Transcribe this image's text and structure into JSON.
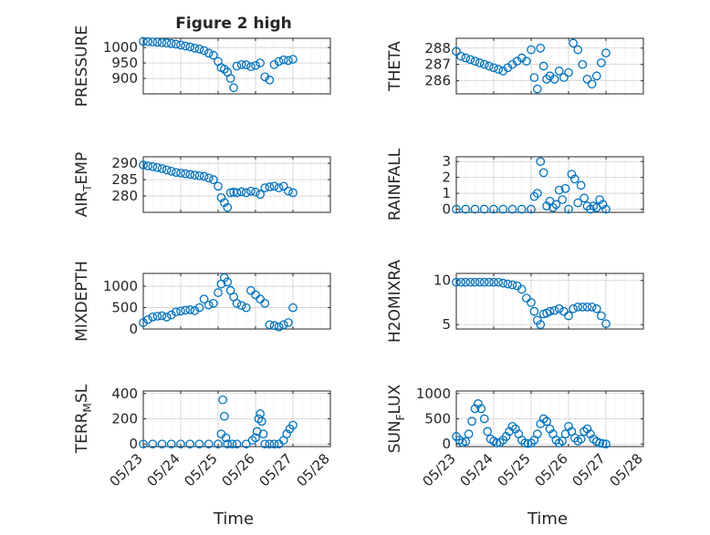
{
  "figure": {
    "title": "Figure 2 high",
    "xlabel": "Time"
  },
  "x_ticks": [
    "05/23",
    "05/24",
    "05/25",
    "05/26",
    "05/27",
    "05/28"
  ],
  "colors": {
    "marker": "#0072BD",
    "axis": "#262626",
    "grid": "#dcdcdc"
  },
  "chart_data": [
    {
      "type": "scatter",
      "title": "Figure 2 high",
      "ylabel": "PRESSURE",
      "ylabel_sub": [],
      "xlim": [
        "05/23",
        "05/28"
      ],
      "ylim": [
        850,
        1030
      ],
      "yticks": [
        900,
        950,
        1000
      ],
      "grid": true,
      "x": [
        "05/23 00:00",
        "05/23 03:00",
        "05/23 06:00",
        "05/23 09:00",
        "05/23 12:00",
        "05/23 15:00",
        "05/23 18:00",
        "05/23 21:00",
        "05/24 00:00",
        "05/24 03:00",
        "05/24 06:00",
        "05/24 09:00",
        "05/24 12:00",
        "05/24 15:00",
        "05/24 18:00",
        "05/24 21:00",
        "05/25 00:00",
        "05/25 02:00",
        "05/25 04:00",
        "05/25 06:00",
        "05/25 08:00",
        "05/25 10:00",
        "05/25 12:00",
        "05/25 15:00",
        "05/25 18:00",
        "05/25 21:00",
        "05/26 00:00",
        "05/26 03:00",
        "05/26 06:00",
        "05/26 09:00",
        "05/26 12:00",
        "05/26 15:00",
        "05/26 18:00",
        "05/26 21:00",
        "05/27 00:00"
      ],
      "y": [
        1020,
        1019,
        1018,
        1017,
        1016,
        1015,
        1013,
        1011,
        1008,
        1005,
        1002,
        998,
        995,
        990,
        982,
        975,
        955,
        935,
        930,
        920,
        900,
        870,
        940,
        945,
        944,
        938,
        942,
        950,
        905,
        895,
        945,
        955,
        960,
        958,
        962
      ]
    },
    {
      "type": "scatter",
      "ylabel": "THETA",
      "ylabel_sub": [],
      "xlim": [
        "05/23",
        "05/28"
      ],
      "ylim": [
        285.2,
        288.6
      ],
      "yticks": [
        286,
        287,
        288
      ],
      "grid": true,
      "x": [
        "05/23 00:00",
        "05/23 03:00",
        "05/23 06:00",
        "05/23 09:00",
        "05/23 12:00",
        "05/23 15:00",
        "05/23 18:00",
        "05/23 21:00",
        "05/24 00:00",
        "05/24 03:00",
        "05/24 06:00",
        "05/24 09:00",
        "05/24 12:00",
        "05/24 15:00",
        "05/24 18:00",
        "05/24 21:00",
        "05/25 00:00",
        "05/25 02:00",
        "05/25 04:00",
        "05/25 06:00",
        "05/25 08:00",
        "05/25 10:00",
        "05/25 12:00",
        "05/25 15:00",
        "05/25 18:00",
        "05/25 21:00",
        "05/26 00:00",
        "05/26 03:00",
        "05/26 06:00",
        "05/26 09:00",
        "05/26 12:00",
        "05/26 15:00",
        "05/26 18:00",
        "05/26 21:00",
        "05/27 00:00"
      ],
      "y": [
        287.8,
        287.5,
        287.4,
        287.3,
        287.2,
        287.1,
        287.0,
        286.9,
        286.8,
        286.7,
        286.6,
        286.8,
        287.0,
        287.2,
        287.4,
        287.2,
        287.9,
        286.2,
        285.5,
        288.0,
        286.9,
        286.1,
        286.3,
        286.1,
        286.6,
        286.2,
        286.5,
        288.3,
        287.9,
        287.0,
        286.1,
        285.8,
        286.3,
        287.1,
        287.7
      ]
    },
    {
      "type": "scatter",
      "ylabel": "AIR",
      "ylabel_sub": [
        "T",
        "EMP"
      ],
      "xlim": [
        "05/23",
        "05/28"
      ],
      "ylim": [
        275,
        292
      ],
      "yticks": [
        280,
        285,
        290
      ],
      "grid": true,
      "x": [
        "05/23 00:00",
        "05/23 03:00",
        "05/23 06:00",
        "05/23 09:00",
        "05/23 12:00",
        "05/23 15:00",
        "05/23 18:00",
        "05/23 21:00",
        "05/24 00:00",
        "05/24 03:00",
        "05/24 06:00",
        "05/24 09:00",
        "05/24 12:00",
        "05/24 15:00",
        "05/24 18:00",
        "05/24 21:00",
        "05/25 00:00",
        "05/25 02:00",
        "05/25 04:00",
        "05/25 06:00",
        "05/25 08:00",
        "05/25 10:00",
        "05/25 12:00",
        "05/25 15:00",
        "05/25 18:00",
        "05/25 21:00",
        "05/26 00:00",
        "05/26 03:00",
        "05/26 06:00",
        "05/26 09:00",
        "05/26 12:00",
        "05/26 15:00",
        "05/26 18:00",
        "05/26 21:00",
        "05/27 00:00"
      ],
      "y": [
        289.5,
        289.2,
        289.0,
        288.7,
        288.4,
        288.0,
        287.6,
        287.2,
        287.0,
        286.8,
        286.6,
        286.4,
        286.2,
        286.0,
        285.5,
        285.0,
        283.0,
        279.5,
        278.0,
        276.5,
        281.0,
        281.2,
        281.0,
        281.3,
        281.0,
        281.5,
        281.2,
        280.5,
        282.5,
        282.8,
        283.0,
        282.5,
        283.0,
        281.5,
        281.0
      ]
    },
    {
      "type": "scatter",
      "ylabel": "RAINFALL",
      "ylabel_sub": [],
      "xlim": [
        "05/23",
        "05/28"
      ],
      "ylim": [
        -0.2,
        3.3
      ],
      "yticks": [
        0,
        1,
        2,
        3
      ],
      "grid": true,
      "x": [
        "05/23 00:00",
        "05/23 06:00",
        "05/23 12:00",
        "05/23 18:00",
        "05/24 00:00",
        "05/24 06:00",
        "05/24 12:00",
        "05/24 18:00",
        "05/25 00:00",
        "05/25 02:00",
        "05/25 04:00",
        "05/25 06:00",
        "05/25 08:00",
        "05/25 10:00",
        "05/25 12:00",
        "05/25 14:00",
        "05/25 16:00",
        "05/25 18:00",
        "05/25 20:00",
        "05/25 22:00",
        "05/26 00:00",
        "05/26 02:00",
        "05/26 04:00",
        "05/26 06:00",
        "05/26 08:00",
        "05/26 10:00",
        "05/26 12:00",
        "05/26 14:00",
        "05/26 16:00",
        "05/26 18:00",
        "05/26 20:00",
        "05/26 22:00",
        "05/27 00:00"
      ],
      "y": [
        0,
        0,
        0,
        0,
        0,
        0,
        0,
        0,
        0,
        0.8,
        1.0,
        3.0,
        2.3,
        0.2,
        0.5,
        0.1,
        0.3,
        1.2,
        0.6,
        1.3,
        0,
        2.2,
        1.9,
        0.4,
        1.5,
        0.7,
        0.2,
        0,
        0.2,
        0.1,
        0.6,
        0.3,
        0
      ]
    },
    {
      "type": "scatter",
      "ylabel": "MIXDEPTH",
      "ylabel_sub": [],
      "xlim": [
        "05/23",
        "05/28"
      ],
      "ylim": [
        0,
        1300
      ],
      "yticks": [
        0,
        500,
        1000
      ],
      "grid": true,
      "x": [
        "05/23 00:00",
        "05/23 03:00",
        "05/23 06:00",
        "05/23 09:00",
        "05/23 12:00",
        "05/23 15:00",
        "05/23 18:00",
        "05/23 21:00",
        "05/24 00:00",
        "05/24 03:00",
        "05/24 06:00",
        "05/24 09:00",
        "05/24 12:00",
        "05/24 15:00",
        "05/24 18:00",
        "05/24 21:00",
        "05/25 00:00",
        "05/25 02:00",
        "05/25 04:00",
        "05/25 06:00",
        "05/25 08:00",
        "05/25 10:00",
        "05/25 12:00",
        "05/25 15:00",
        "05/25 18:00",
        "05/25 21:00",
        "05/26 00:00",
        "05/26 03:00",
        "05/26 06:00",
        "05/26 09:00",
        "05/26 12:00",
        "05/26 15:00",
        "05/26 18:00",
        "05/26 21:00",
        "05/27 00:00"
      ],
      "y": [
        150,
        220,
        280,
        300,
        310,
        280,
        330,
        400,
        420,
        440,
        450,
        430,
        500,
        700,
        560,
        600,
        850,
        1050,
        1200,
        1100,
        900,
        750,
        600,
        550,
        500,
        900,
        800,
        700,
        600,
        100,
        80,
        50,
        100,
        150,
        500
      ]
    },
    {
      "type": "scatter",
      "ylabel": "H2OMIXRA",
      "ylabel_sub": [],
      "xlim": [
        "05/23",
        "05/28"
      ],
      "ylim": [
        4.5,
        10.8
      ],
      "yticks": [
        5,
        10
      ],
      "grid": true,
      "x": [
        "05/23 00:00",
        "05/23 03:00",
        "05/23 06:00",
        "05/23 09:00",
        "05/23 12:00",
        "05/23 15:00",
        "05/23 18:00",
        "05/23 21:00",
        "05/24 00:00",
        "05/24 03:00",
        "05/24 06:00",
        "05/24 09:00",
        "05/24 12:00",
        "05/24 15:00",
        "05/24 18:00",
        "05/24 21:00",
        "05/25 00:00",
        "05/25 02:00",
        "05/25 04:00",
        "05/25 06:00",
        "05/25 08:00",
        "05/25 10:00",
        "05/25 12:00",
        "05/25 15:00",
        "05/25 18:00",
        "05/25 21:00",
        "05/26 00:00",
        "05/26 03:00",
        "05/26 06:00",
        "05/26 09:00",
        "05/26 12:00",
        "05/26 15:00",
        "05/26 18:00",
        "05/26 21:00",
        "05/27 00:00"
      ],
      "y": [
        9.8,
        9.8,
        9.8,
        9.8,
        9.8,
        9.8,
        9.8,
        9.8,
        9.8,
        9.8,
        9.7,
        9.6,
        9.5,
        9.4,
        9.0,
        8.0,
        7.5,
        6.5,
        5.5,
        5.0,
        6.2,
        6.3,
        6.5,
        6.6,
        6.8,
        6.5,
        6.0,
        6.8,
        7.0,
        7.0,
        7.0,
        7.0,
        6.8,
        6.0,
        5.1
      ]
    },
    {
      "type": "scatter",
      "ylabel": "TERR",
      "ylabel_sub": [
        "M",
        "SL"
      ],
      "xlim": [
        "05/23",
        "05/28"
      ],
      "ylim": [
        -20,
        420
      ],
      "yticks": [
        0,
        200,
        400
      ],
      "grid": true,
      "x": [
        "05/23 00:00",
        "05/23 06:00",
        "05/23 12:00",
        "05/23 18:00",
        "05/24 00:00",
        "05/24 06:00",
        "05/24 12:00",
        "05/24 18:00",
        "05/25 00:00",
        "05/25 02:00",
        "05/25 03:00",
        "05/25 04:00",
        "05/25 05:00",
        "05/25 06:00",
        "05/25 09:00",
        "05/25 12:00",
        "05/25 18:00",
        "05/25 22:00",
        "05/26 00:00",
        "05/26 01:00",
        "05/26 02:00",
        "05/26 03:00",
        "05/26 04:00",
        "05/26 05:00",
        "05/26 06:00",
        "05/26 09:00",
        "05/26 12:00",
        "05/26 15:00",
        "05/26 18:00",
        "05/26 20:00",
        "05/26 22:00",
        "05/27 00:00"
      ],
      "y": [
        0,
        0,
        0,
        0,
        0,
        0,
        0,
        0,
        0,
        80,
        350,
        220,
        50,
        0,
        0,
        0,
        0,
        30,
        50,
        100,
        200,
        240,
        180,
        80,
        0,
        0,
        0,
        0,
        30,
        80,
        120,
        150
      ]
    },
    {
      "type": "scatter",
      "ylabel": "SUN",
      "ylabel_sub": [
        "F",
        "LUX"
      ],
      "xlim": [
        "05/23",
        "05/28"
      ],
      "ylim": [
        -50,
        1050
      ],
      "yticks": [
        0,
        500,
        1000
      ],
      "grid": true,
      "x": [
        "05/23 00:00",
        "05/23 02:00",
        "05/23 04:00",
        "05/23 06:00",
        "05/23 08:00",
        "05/23 10:00",
        "05/23 12:00",
        "05/23 14:00",
        "05/23 16:00",
        "05/23 18:00",
        "05/23 20:00",
        "05/23 22:00",
        "05/24 00:00",
        "05/24 02:00",
        "05/24 04:00",
        "05/24 06:00",
        "05/24 08:00",
        "05/24 10:00",
        "05/24 12:00",
        "05/24 14:00",
        "05/24 16:00",
        "05/24 18:00",
        "05/24 20:00",
        "05/24 22:00",
        "05/25 00:00",
        "05/25 02:00",
        "05/25 04:00",
        "05/25 06:00",
        "05/25 08:00",
        "05/25 10:00",
        "05/25 12:00",
        "05/25 14:00",
        "05/25 16:00",
        "05/25 18:00",
        "05/25 20:00",
        "05/25 22:00",
        "05/26 00:00",
        "05/26 02:00",
        "05/26 04:00",
        "05/26 06:00",
        "05/26 08:00",
        "05/26 10:00",
        "05/26 12:00",
        "05/26 14:00",
        "05/26 16:00",
        "05/26 18:00",
        "05/26 20:00",
        "05/26 22:00",
        "05/27 00:00"
      ],
      "y": [
        150,
        80,
        30,
        50,
        200,
        450,
        700,
        800,
        700,
        500,
        250,
        100,
        60,
        20,
        30,
        80,
        150,
        250,
        350,
        300,
        200,
        80,
        20,
        10,
        20,
        80,
        200,
        400,
        500,
        450,
        300,
        200,
        80,
        20,
        60,
        200,
        350,
        250,
        120,
        60,
        100,
        250,
        300,
        200,
        100,
        50,
        20,
        10,
        0
      ]
    }
  ]
}
